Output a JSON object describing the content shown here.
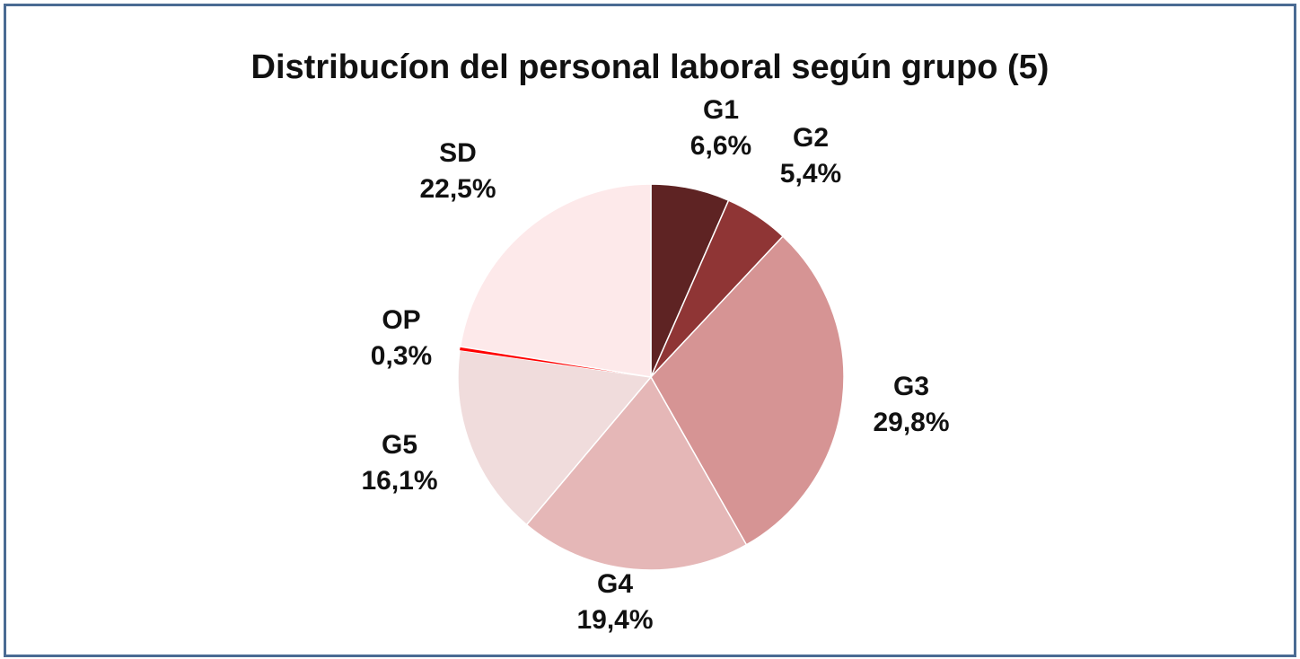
{
  "chart_data": {
    "type": "pie",
    "title": "Distribucíon del personal laboral según grupo (5)",
    "slices": [
      {
        "label": "G1",
        "value": 6.6,
        "value_label": "6,6%",
        "color": "#5e2323"
      },
      {
        "label": "G2",
        "value": 5.4,
        "value_label": "5,4%",
        "color": "#8f3535"
      },
      {
        "label": "G3",
        "value": 29.8,
        "value_label": "29,8%",
        "color": "#d69494"
      },
      {
        "label": "G4",
        "value": 19.4,
        "value_label": "19,4%",
        "color": "#e5b7b7"
      },
      {
        "label": "G5",
        "value": 16.1,
        "value_label": "16,1%",
        "color": "#f0dcdc"
      },
      {
        "label": "OP",
        "value": 0.3,
        "value_label": "0,3%",
        "color": "#ff0000"
      },
      {
        "label": "SD",
        "value": 22.5,
        "value_label": "22,5%",
        "color": "#fde9ea"
      }
    ],
    "start_angle": "top",
    "direction": "clockwise",
    "legend": "none"
  },
  "colors": {
    "frame_border": "#4a6b93",
    "background": "#ffffff",
    "text": "#111111"
  }
}
